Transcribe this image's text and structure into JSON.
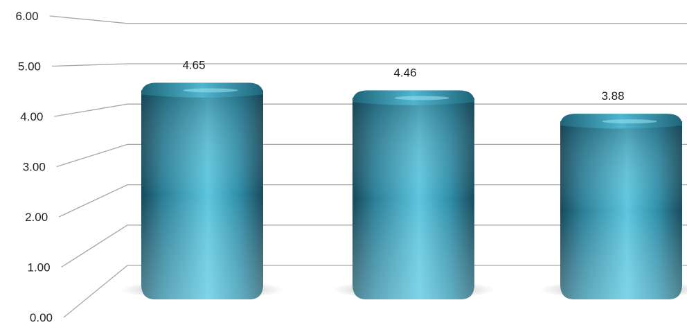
{
  "chart_data": {
    "type": "bar",
    "style": "3d-cylinder",
    "categories": [
      "",
      "",
      ""
    ],
    "series": [
      {
        "values": [
          4.65,
          4.46,
          3.88
        ]
      }
    ],
    "data_labels": [
      "4.65",
      "4.46",
      "3.88"
    ],
    "y_tick_labels": [
      "0.00",
      "1.00",
      "2.00",
      "3.00",
      "4.00",
      "5.00",
      "6.00"
    ],
    "ylim": [
      0,
      6
    ],
    "grid": true,
    "legend": "none",
    "colors": {
      "bar": "#2f8fa8",
      "bar_dark": "#1c5a6e",
      "bar_light": "#6fd0e6",
      "grid": "#a6a6a6",
      "shadow": "#9a9a9a"
    }
  }
}
